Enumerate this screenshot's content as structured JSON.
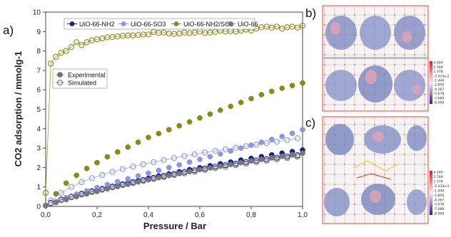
{
  "panel_labels": {
    "a": "a)",
    "b": "b)",
    "c": "c)"
  },
  "chart_data": {
    "type": "scatter",
    "xlabel": "Pressure / Bar",
    "ylabel": "CO2 adsorption / mmolg-1",
    "xlim": [
      0,
      1.0
    ],
    "ylim": [
      0,
      10
    ],
    "xticks": [
      "0,0",
      "0,2",
      "0,4",
      "0,6",
      "0,8",
      "1,0"
    ],
    "yticks": [
      "0",
      "1",
      "2",
      "3",
      "4",
      "5",
      "6",
      "7",
      "8",
      "9",
      "10"
    ],
    "grid": false,
    "legend_series_placement": "top",
    "legend_type_placement": "upper-left",
    "legend_types": [
      {
        "label": "Experimental",
        "marker": "filled"
      },
      {
        "label": "Simulated",
        "marker": "hollow"
      }
    ],
    "series": [
      {
        "name": "UiO-66-NH2",
        "color": "#16208f",
        "experimental": {
          "x": [
            0.0,
            0.04,
            0.08,
            0.12,
            0.16,
            0.2,
            0.24,
            0.28,
            0.32,
            0.36,
            0.4,
            0.44,
            0.48,
            0.52,
            0.56,
            0.6,
            0.64,
            0.68,
            0.72,
            0.76,
            0.8,
            0.84,
            0.88,
            0.92,
            0.96,
            1.0
          ],
          "y": [
            0.05,
            0.22,
            0.38,
            0.54,
            0.68,
            0.82,
            0.95,
            1.08,
            1.2,
            1.32,
            1.44,
            1.56,
            1.67,
            1.78,
            1.89,
            1.99,
            2.09,
            2.19,
            2.28,
            2.38,
            2.47,
            2.56,
            2.65,
            2.74,
            2.82,
            2.9
          ]
        },
        "simulated": {
          "x": [
            0.02,
            0.06,
            0.1,
            0.14,
            0.18,
            0.22,
            0.26,
            0.3,
            0.34,
            0.38,
            0.42,
            0.46,
            0.5,
            0.54,
            0.58,
            0.62,
            0.66,
            0.7,
            0.74,
            0.78,
            0.82,
            0.86,
            0.9,
            0.94,
            0.98
          ],
          "y": [
            0.18,
            0.35,
            0.5,
            0.65,
            0.78,
            0.9,
            1.02,
            1.14,
            1.25,
            1.36,
            1.47,
            1.57,
            1.67,
            1.77,
            1.86,
            1.95,
            2.04,
            2.12,
            2.2,
            2.28,
            2.36,
            2.43,
            2.5,
            2.57,
            2.63
          ]
        }
      },
      {
        "name": "UiO-66-SO3",
        "color": "#8c96e8",
        "experimental": {
          "x": [
            0.0,
            0.04,
            0.08,
            0.12,
            0.16,
            0.2,
            0.24,
            0.28,
            0.32,
            0.36,
            0.4,
            0.44,
            0.48,
            0.52,
            0.56,
            0.6,
            0.64,
            0.68,
            0.72,
            0.76,
            0.8,
            0.84,
            0.88,
            0.92,
            0.96,
            1.0
          ],
          "y": [
            0.05,
            0.25,
            0.45,
            0.63,
            0.8,
            0.97,
            1.12,
            1.27,
            1.42,
            1.57,
            1.71,
            1.85,
            2.0,
            2.14,
            2.28,
            2.42,
            2.56,
            2.7,
            2.85,
            3.0,
            3.15,
            3.3,
            3.45,
            3.6,
            3.76,
            3.95
          ]
        },
        "simulated": {
          "x": [
            0.02,
            0.06,
            0.1,
            0.14,
            0.18,
            0.22,
            0.26,
            0.3,
            0.34,
            0.38,
            0.42,
            0.46,
            0.5,
            0.54,
            0.58,
            0.62,
            0.66,
            0.7,
            0.74,
            0.78,
            0.82,
            0.86,
            0.9,
            0.94,
            0.98
          ],
          "y": [
            0.3,
            0.7,
            1.0,
            1.25,
            1.45,
            1.62,
            1.78,
            1.92,
            2.05,
            2.17,
            2.28,
            2.39,
            2.49,
            2.59,
            2.68,
            2.77,
            2.86,
            2.94,
            3.02,
            3.1,
            3.18,
            3.26,
            3.33,
            3.41,
            3.5
          ]
        }
      },
      {
        "name": "UiO-66-NH2/SO3",
        "color": "#8a8a16",
        "experimental": {
          "x": [
            0.0,
            0.04,
            0.08,
            0.12,
            0.16,
            0.2,
            0.24,
            0.28,
            0.32,
            0.36,
            0.4,
            0.44,
            0.48,
            0.52,
            0.56,
            0.6,
            0.64,
            0.68,
            0.72,
            0.76,
            0.8,
            0.84,
            0.88,
            0.92,
            0.96,
            1.0
          ],
          "y": [
            0.05,
            0.65,
            1.2,
            1.6,
            1.95,
            2.25,
            2.55,
            2.8,
            3.05,
            3.3,
            3.55,
            3.75,
            3.95,
            4.15,
            4.35,
            4.55,
            4.75,
            4.95,
            5.15,
            5.35,
            5.55,
            5.75,
            5.92,
            6.08,
            6.22,
            6.35
          ]
        },
        "simulated": {
          "x": [
            0.0,
            0.02,
            0.04,
            0.06,
            0.08,
            0.1,
            0.12,
            0.14,
            0.16,
            0.18,
            0.2,
            0.22,
            0.24,
            0.26,
            0.28,
            0.3,
            0.32,
            0.34,
            0.36,
            0.38,
            0.4,
            0.42,
            0.44,
            0.46,
            0.48,
            0.5,
            0.52,
            0.54,
            0.56,
            0.58,
            0.6,
            0.62,
            0.64,
            0.66,
            0.68,
            0.7,
            0.72,
            0.74,
            0.76,
            0.78,
            0.8,
            0.82,
            0.84,
            0.86,
            0.88,
            0.9,
            0.92,
            0.94,
            0.96,
            0.98,
            1.0
          ],
          "y": [
            0.7,
            7.35,
            7.7,
            7.9,
            8.0,
            8.2,
            8.45,
            8.3,
            8.45,
            8.55,
            8.6,
            8.65,
            8.7,
            8.72,
            8.75,
            8.78,
            8.8,
            8.8,
            8.82,
            8.85,
            8.85,
            8.98,
            8.93,
            8.95,
            8.9,
            8.88,
            8.9,
            8.95,
            8.92,
            8.95,
            9.0,
            8.92,
            8.95,
            8.98,
            9.05,
            9.0,
            9.02,
            9.0,
            9.05,
            9.1,
            9.05,
            9.15,
            9.22,
            9.25,
            9.2,
            9.25,
            9.15,
            9.22,
            9.25,
            9.2,
            9.3
          ]
        }
      },
      {
        "name": "UiO-66",
        "color": "#777777",
        "experimental": {
          "x": [
            0.0,
            0.04,
            0.08,
            0.12,
            0.16,
            0.2,
            0.24,
            0.28,
            0.32,
            0.36,
            0.4,
            0.44,
            0.48,
            0.52,
            0.56,
            0.6,
            0.64,
            0.68,
            0.72,
            0.76,
            0.8,
            0.84,
            0.88,
            0.92,
            0.96,
            1.0
          ],
          "y": [
            0.04,
            0.2,
            0.35,
            0.5,
            0.64,
            0.77,
            0.9,
            1.02,
            1.14,
            1.26,
            1.37,
            1.48,
            1.59,
            1.69,
            1.79,
            1.89,
            1.98,
            2.07,
            2.16,
            2.25,
            2.34,
            2.42,
            2.5,
            2.58,
            2.66,
            2.74
          ]
        },
        "simulated": {
          "x": [
            0.02,
            0.06,
            0.1,
            0.14,
            0.18,
            0.22,
            0.26,
            0.3,
            0.34,
            0.38,
            0.42,
            0.46,
            0.5,
            0.54,
            0.58,
            0.62,
            0.66,
            0.7,
            0.74,
            0.78,
            0.82,
            0.86,
            0.9,
            0.94,
            0.98
          ],
          "y": [
            0.15,
            0.32,
            0.47,
            0.61,
            0.74,
            0.86,
            0.98,
            1.09,
            1.2,
            1.31,
            1.41,
            1.51,
            1.61,
            1.7,
            1.79,
            1.88,
            1.96,
            2.04,
            2.12,
            2.2,
            2.28,
            2.35,
            2.42,
            2.49,
            2.56
          ]
        }
      }
    ]
  },
  "colorbar": {
    "colors": {
      "max": "#e0151b",
      "mid": "#f2f2f2",
      "min": "#1717b5"
    },
    "labels": [
      "4.200",
      "2.789",
      "1.378",
      "-3.333e-2",
      "-1.444",
      "-2.856",
      "-4.267",
      "-5.678",
      "-7.089",
      "-8.500"
    ]
  }
}
